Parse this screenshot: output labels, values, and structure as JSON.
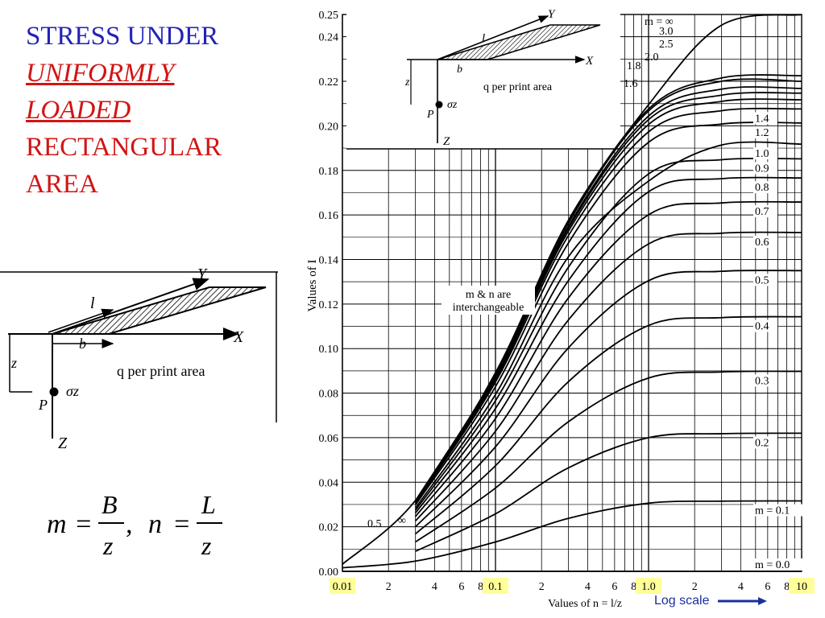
{
  "slide": {
    "title_line1": "STRESS UNDER",
    "title_line2": "UNIFORMLY",
    "title_line3": "LOADED",
    "title_line4": "RECTANGULAR",
    "title_line5": "AREA",
    "log_scale_label": "Log scale"
  },
  "diagram": {
    "axis_x": "X",
    "axis_y": "Y",
    "axis_z": "Z",
    "length": "l",
    "width": "b",
    "depth": "z",
    "load": "q per print area",
    "point": "P",
    "stress": "σz"
  },
  "formula": {
    "m": "m",
    "n": "n",
    "B": "B",
    "L": "L",
    "z": "z",
    "eq": "=",
    "sep": ","
  },
  "colors": {
    "title_blue": "#2323b6",
    "title_red": "#d21414",
    "highlight": "#ffff9a",
    "arrow": "#1b2f9c"
  },
  "chart_data": {
    "type": "line",
    "xlabel": "Values of n = l/z",
    "ylabel": "Values of I",
    "x_scale": "log",
    "xlim": [
      0.01,
      10
    ],
    "ylim": [
      0,
      0.25
    ],
    "grid": true,
    "x_ticks": [
      "0.01",
      "2",
      "4",
      "6",
      "8",
      "0.1",
      "2",
      "4",
      "6",
      "8",
      "1.0",
      "2",
      "4",
      "6",
      "8",
      "10"
    ],
    "x_tick_values": [
      0.01,
      0.02,
      0.04,
      0.06,
      0.08,
      0.1,
      0.2,
      0.4,
      0.6,
      0.8,
      1.0,
      2,
      4,
      6,
      8,
      10
    ],
    "highlighted_ticks": [
      "0.01",
      "0.1",
      "1.0",
      "10"
    ],
    "y_ticks": [
      "0.00",
      "0.02",
      "0.04",
      "0.06",
      "0.08",
      "0.10",
      "0.12",
      "0.14",
      "0.16",
      "0.18",
      "0.20",
      "0.22",
      "0.24",
      "0.25"
    ],
    "annotation": "m & n are interchangeable",
    "bottom_labels": [
      "0.5",
      "∞"
    ],
    "series": [
      {
        "name": "m = 0.0",
        "values": [
          [
            0.01,
            0.0
          ],
          [
            10,
            0.0
          ]
        ]
      },
      {
        "name": "m = 0.1",
        "values": [
          [
            0.01,
            0.0016
          ],
          [
            0.03,
            0.0046
          ],
          [
            0.1,
            0.0132
          ],
          [
            0.3,
            0.0238
          ],
          [
            1.0,
            0.0306
          ],
          [
            3,
            0.0315
          ],
          [
            10,
            0.0316
          ]
        ]
      },
      {
        "name": "0.2",
        "values": [
          [
            0.03,
            0.009
          ],
          [
            0.1,
            0.0258
          ],
          [
            0.3,
            0.0465
          ],
          [
            1.0,
            0.06
          ],
          [
            3,
            0.0618
          ],
          [
            10,
            0.062
          ]
        ]
      },
      {
        "name": "0.3",
        "values": [
          [
            0.03,
            0.0132
          ],
          [
            0.1,
            0.0374
          ],
          [
            0.3,
            0.0672
          ],
          [
            1.0,
            0.0868
          ],
          [
            3,
            0.0895
          ],
          [
            10,
            0.0898
          ]
        ]
      },
      {
        "name": "0.4",
        "values": [
          [
            0.03,
            0.0168
          ],
          [
            0.1,
            0.0474
          ],
          [
            0.3,
            0.0852
          ],
          [
            1.0,
            0.1104
          ],
          [
            3,
            0.1139
          ],
          [
            10,
            0.1143
          ]
        ]
      },
      {
        "name": "0.5",
        "values": [
          [
            0.03,
            0.02
          ],
          [
            0.1,
            0.0559
          ],
          [
            0.3,
            0.1004
          ],
          [
            1.0,
            0.1305
          ],
          [
            3,
            0.1347
          ],
          [
            10,
            0.135
          ]
        ]
      },
      {
        "name": "0.6",
        "values": [
          [
            0.03,
            0.0226
          ],
          [
            0.1,
            0.0629
          ],
          [
            0.3,
            0.1129
          ],
          [
            1.0,
            0.147
          ],
          [
            3,
            0.1518
          ],
          [
            10,
            0.1521
          ]
        ]
      },
      {
        "name": "0.7",
        "values": [
          [
            0.03,
            0.0246
          ],
          [
            0.1,
            0.0686
          ],
          [
            0.3,
            0.1228
          ],
          [
            1.0,
            0.1601
          ],
          [
            3,
            0.1654
          ],
          [
            10,
            0.1658
          ]
        ]
      },
      {
        "name": "0.8",
        "values": [
          [
            0.03,
            0.0262
          ],
          [
            0.1,
            0.0731
          ],
          [
            0.3,
            0.1306
          ],
          [
            1.0,
            0.1704
          ],
          [
            3,
            0.1763
          ],
          [
            10,
            0.1766
          ]
        ]
      },
      {
        "name": "0.9",
        "values": [
          [
            0.03,
            0.0274
          ],
          [
            0.1,
            0.0766
          ],
          [
            0.3,
            0.1366
          ],
          [
            1.0,
            0.1784
          ],
          [
            3,
            0.1848
          ],
          [
            10,
            0.1852
          ]
        ]
      },
      {
        "name": "1.0",
        "values": [
          [
            0.03,
            0.0284
          ],
          [
            0.1,
            0.0794
          ],
          [
            0.3,
            0.1413
          ],
          [
            1.0,
            0.1752
          ],
          [
            3,
            0.1914
          ],
          [
            10,
            0.1918
          ]
        ]
      },
      {
        "name": "1.2",
        "values": [
          [
            0.03,
            0.0298
          ],
          [
            0.1,
            0.0829
          ],
          [
            0.3,
            0.1475
          ],
          [
            1.0,
            0.1926
          ],
          [
            3,
            0.2008
          ],
          [
            10,
            0.2013
          ]
        ]
      },
      {
        "name": "1.4",
        "values": [
          [
            0.03,
            0.0305
          ],
          [
            0.1,
            0.085
          ],
          [
            0.3,
            0.1508
          ],
          [
            1.0,
            0.1973
          ],
          [
            3,
            0.2068
          ],
          [
            10,
            0.2076
          ]
        ]
      },
      {
        "name": "1.6",
        "values": [
          [
            0.03,
            0.031
          ],
          [
            0.1,
            0.0862
          ],
          [
            0.3,
            0.1528
          ],
          [
            1.0,
            0.2006
          ],
          [
            3,
            0.211
          ],
          [
            10,
            0.2117
          ]
        ]
      },
      {
        "name": "1.8",
        "values": [
          [
            0.03,
            0.0312
          ],
          [
            0.1,
            0.087
          ],
          [
            0.3,
            0.1541
          ],
          [
            1.0,
            0.2028
          ],
          [
            3,
            0.2138
          ],
          [
            10,
            0.2147
          ]
        ]
      },
      {
        "name": "2.0",
        "values": [
          [
            0.03,
            0.0314
          ],
          [
            0.1,
            0.0876
          ],
          [
            0.3,
            0.155
          ],
          [
            1.0,
            0.2044
          ],
          [
            3,
            0.2165
          ],
          [
            10,
            0.2168
          ]
        ]
      },
      {
        "name": "2.5",
        "values": [
          [
            0.03,
            0.0316
          ],
          [
            0.1,
            0.0884
          ],
          [
            0.3,
            0.1564
          ],
          [
            1.0,
            0.2067
          ],
          [
            3,
            0.22
          ],
          [
            10,
            0.22
          ]
        ]
      },
      {
        "name": "3.0",
        "values": [
          [
            0.03,
            0.0317
          ],
          [
            0.1,
            0.0887
          ],
          [
            0.3,
            0.157
          ],
          [
            1.0,
            0.2076
          ],
          [
            3,
            0.2215
          ],
          [
            10,
            0.2225
          ]
        ]
      },
      {
        "name": "m = ∞",
        "values": [
          [
            0.01,
            0.0032
          ],
          [
            0.03,
            0.0318
          ],
          [
            0.1,
            0.0892
          ],
          [
            0.3,
            0.1577
          ],
          [
            1.0,
            0.2095
          ],
          [
            3,
            0.2452
          ],
          [
            10,
            0.2499
          ]
        ]
      }
    ]
  }
}
